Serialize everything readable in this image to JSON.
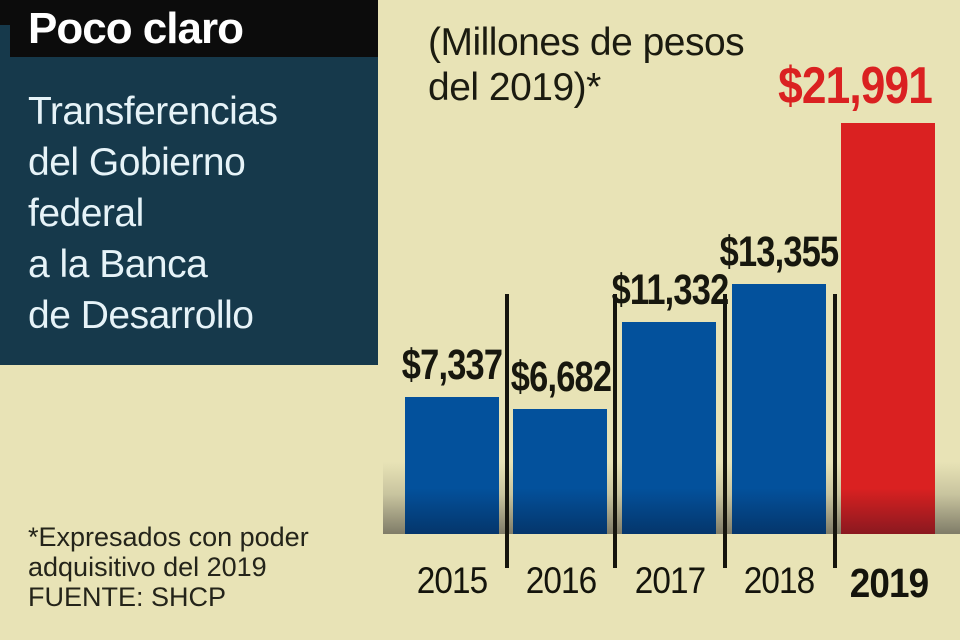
{
  "panel": {
    "kicker": "Poco claro",
    "title_lines": [
      "Transferencias",
      "del Gobierno",
      "federal",
      "a la Banca",
      "de Desarrollo"
    ]
  },
  "chart_data": {
    "type": "bar",
    "title": "Poco claro — Transferencias del Gobierno federal a la Banca de Desarrollo",
    "subtitle_line1": "(Millones de pesos",
    "subtitle_line2": "del 2019)*",
    "unit": "Millones de pesos del 2019",
    "categories": [
      "2015",
      "2016",
      "2017",
      "2018",
      "2019"
    ],
    "values": [
      7337,
      6682,
      11332,
      13355,
      21991
    ],
    "value_labels": [
      "$7,337",
      "$6,682",
      "$11,332",
      "$13,355",
      "$21,991"
    ],
    "highlight_index": 4,
    "xlabel": "",
    "ylabel": "",
    "ylim": [
      0,
      22000
    ],
    "grid": false,
    "legend": false,
    "bar_color": "#03519c",
    "highlight_color": "#da2121",
    "value_label_color": "#17170e",
    "highlight_label_color": "#da2121"
  },
  "footnote": {
    "line1": "*Expresados con poder",
    "line2": "adquisitivo del 2019",
    "source": "FUENTE: SHCP"
  },
  "colors": {
    "background": "#e8e3b6",
    "panel": "#16394b",
    "kicker_bar": "#0c0c0c",
    "panel_text": "#e6f3f8",
    "kicker_text": "#ffffff",
    "dark_text": "#17170e"
  }
}
